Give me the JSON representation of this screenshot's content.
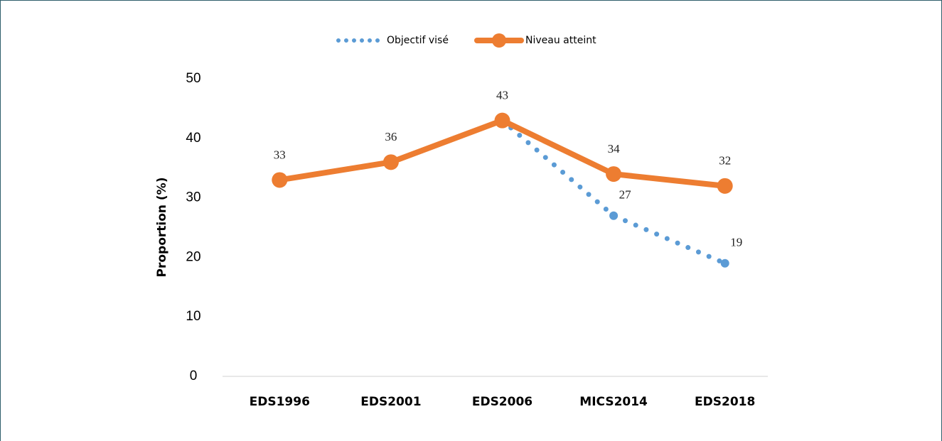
{
  "chart_data": {
    "type": "line",
    "categories": [
      "EDS1996",
      "EDS2001",
      "EDS2006",
      "MICS2014",
      "EDS2018"
    ],
    "y_label": "Proportion (%)",
    "series": [
      {
        "name": "Objectif visé",
        "color": "#5b9bd5",
        "style": "dotted",
        "values": [
          null,
          null,
          43,
          27,
          19
        ],
        "value_labels": [
          null,
          null,
          null,
          "27",
          "19"
        ]
      },
      {
        "name": "Niveau atteint",
        "color": "#ed7d31",
        "style": "solid",
        "values": [
          33,
          36,
          43,
          34,
          32
        ]
      }
    ],
    "ylim": [
      0,
      50
    ],
    "yticks": [
      0,
      10,
      20,
      30,
      40,
      50
    ],
    "grid": false,
    "legend": "top"
  }
}
